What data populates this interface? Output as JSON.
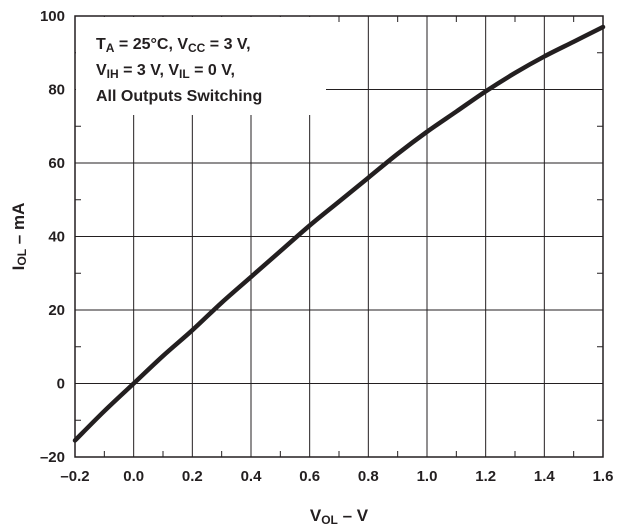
{
  "chart_data": {
    "type": "line",
    "xlabel": {
      "main": "V",
      "sub": "OL",
      "rest": " – V"
    },
    "ylabel": {
      "main": "I",
      "sub": "OL",
      "rest": " – mA"
    },
    "xlim": [
      -0.2,
      1.6
    ],
    "ylim": [
      -20,
      100
    ],
    "xticks": [
      "–0.2",
      "0.0",
      "0.2",
      "0.4",
      "0.6",
      "0.8",
      "1.0",
      "1.2",
      "1.4",
      "1.6"
    ],
    "yticks": [
      "–20",
      "0",
      "20",
      "40",
      "60",
      "80",
      "100"
    ],
    "grid": true,
    "annotation": {
      "line1": [
        {
          "text": "T"
        },
        {
          "text": "A",
          "sub": true
        },
        {
          "text": " = 25°C, V"
        },
        {
          "text": "CC",
          "sub": true
        },
        {
          "text": " = 3 V,"
        }
      ],
      "line2": [
        {
          "text": "V"
        },
        {
          "text": "IH",
          "sub": true
        },
        {
          "text": " = 3 V, V"
        },
        {
          "text": "IL",
          "sub": true
        },
        {
          "text": " = 0 V,"
        }
      ],
      "line3": [
        {
          "text": "All Outputs Switching"
        }
      ]
    },
    "series": [
      {
        "color": "#231f20",
        "x": [
          -0.2,
          -0.1,
          0.0,
          0.1,
          0.2,
          0.3,
          0.4,
          0.5,
          0.6,
          0.7,
          0.8,
          0.9,
          1.0,
          1.1,
          1.2,
          1.3,
          1.4,
          1.5,
          1.6
        ],
        "y": [
          -15.5,
          -7.5,
          0.0,
          7.5,
          14.5,
          22.0,
          29.0,
          36.0,
          43.0,
          49.5,
          56.0,
          62.5,
          68.5,
          74.0,
          79.5,
          84.5,
          89.0,
          93.0,
          97.0
        ]
      }
    ]
  }
}
